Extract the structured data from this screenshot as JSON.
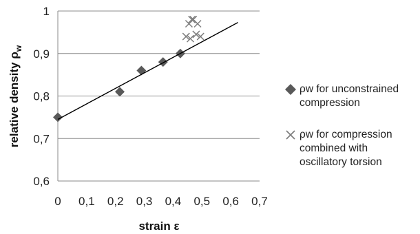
{
  "chart_data": {
    "type": "scatter",
    "xlabel": "strain  ε",
    "ylabel_main": "relative density ρ",
    "ylabel_sub": "w",
    "xlim": [
      0,
      0.7
    ],
    "ylim": [
      0.6,
      1.0
    ],
    "x_ticks": [
      "0",
      "0,1",
      "0,2",
      "0,3",
      "0,4",
      "0,5",
      "0,6",
      "0,7"
    ],
    "y_ticks": [
      "0,6",
      "0,7",
      "0,8",
      "0,9",
      "1"
    ],
    "grid": "horizontal",
    "legend_position": "right",
    "series": [
      {
        "name": "ρw  for unconstrained compression",
        "legend_lines": [
          "ρw  for unconstrained",
          "compression"
        ],
        "marker": "diamond",
        "color": "#595959",
        "x": [
          0,
          0.215,
          0.29,
          0.365,
          0.425
        ],
        "y": [
          0.75,
          0.81,
          0.86,
          0.88,
          0.9
        ]
      },
      {
        "name": "ρw   for compression combined with oscillatory torsion",
        "legend_lines": [
          "ρw   for compression",
          "combined with",
          "oscillatory torsion"
        ],
        "marker": "x",
        "color": "#7f7f7f",
        "x": [
          0.445,
          0.455,
          0.46,
          0.465,
          0.47,
          0.48,
          0.485,
          0.495
        ],
        "y": [
          0.94,
          0.97,
          0.935,
          0.98,
          0.98,
          0.945,
          0.97,
          0.94
        ]
      },
      {
        "type": "trendline",
        "color": "#000000",
        "x": [
          0,
          0.625
        ],
        "y": [
          0.745,
          0.973
        ]
      }
    ]
  }
}
